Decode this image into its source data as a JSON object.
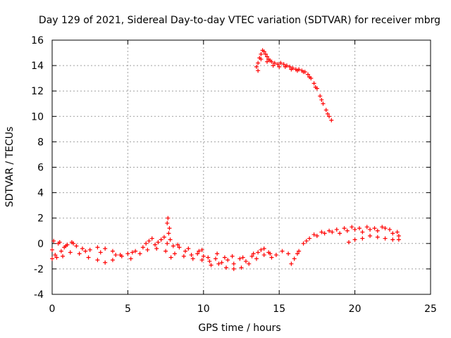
{
  "chart_data": {
    "type": "scatter",
    "title": "Day 129 of 2021, Sidereal Day-to-day VTEC variation (SDTVAR) for receiver mbrg",
    "xlabel": "GPS time / hours",
    "ylabel": "SDTVAR / TECUs",
    "xlim": [
      0,
      25
    ],
    "ylim": [
      -4,
      16
    ],
    "xticks": [
      "0",
      "5",
      "10",
      "15",
      "20",
      "25"
    ],
    "yticks": [
      "-4",
      "-2",
      "0",
      "2",
      "4",
      "6",
      "8",
      "10",
      "12",
      "14",
      "16"
    ],
    "grid": true,
    "marker": "+",
    "marker_color": "#ff0000",
    "series": [
      {
        "name": "SDTVAR",
        "points": [
          [
            0.0,
            -0.5
          ],
          [
            0.2,
            -0.9
          ],
          [
            0.4,
            0.0
          ],
          [
            0.6,
            -0.6
          ],
          [
            0.8,
            -0.3
          ],
          [
            1.0,
            -0.1
          ],
          [
            1.3,
            0.1
          ],
          [
            1.6,
            -0.2
          ],
          [
            2.0,
            -0.4
          ],
          [
            2.5,
            -0.5
          ],
          [
            3.0,
            -0.3
          ],
          [
            3.5,
            -0.4
          ],
          [
            4.0,
            -0.6
          ],
          [
            4.5,
            -0.9
          ],
          [
            5.0,
            -0.8
          ],
          [
            5.5,
            -0.6
          ],
          [
            6.0,
            -0.3
          ],
          [
            6.4,
            0.2
          ],
          [
            6.8,
            -0.1
          ],
          [
            7.2,
            0.3
          ],
          [
            7.6,
            0.0
          ],
          [
            8.0,
            -0.2
          ],
          [
            8.4,
            -0.3
          ],
          [
            8.8,
            -0.6
          ],
          [
            9.2,
            -0.9
          ],
          [
            9.6,
            -0.8
          ],
          [
            10.0,
            -1.0
          ],
          [
            10.4,
            -1.4
          ],
          [
            10.8,
            -1.2
          ],
          [
            11.2,
            -1.5
          ],
          [
            11.6,
            -1.3
          ],
          [
            12.0,
            -1.6
          ],
          [
            12.4,
            -1.2
          ],
          [
            12.8,
            -1.4
          ],
          [
            13.2,
            -1.0
          ],
          [
            13.6,
            -0.7
          ],
          [
            14.0,
            -0.4
          ],
          [
            14.4,
            -0.8
          ],
          [
            14.8,
            -0.9
          ],
          [
            15.2,
            -0.6
          ],
          [
            15.6,
            -0.8
          ],
          [
            0.0,
            -1.2
          ],
          [
            0.3,
            -1.1
          ],
          [
            0.7,
            -1.0
          ],
          [
            1.2,
            -0.7
          ],
          [
            1.8,
            -0.8
          ],
          [
            2.4,
            -1.1
          ],
          [
            3.0,
            -1.3
          ],
          [
            3.5,
            -1.5
          ],
          [
            4.0,
            -1.3
          ],
          [
            4.6,
            -1.0
          ],
          [
            5.2,
            -1.2
          ],
          [
            5.8,
            -0.8
          ],
          [
            6.3,
            -0.5
          ],
          [
            6.9,
            -0.4
          ],
          [
            7.5,
            -0.6
          ],
          [
            8.1,
            -0.8
          ],
          [
            8.7,
            -1.0
          ],
          [
            9.3,
            -1.2
          ],
          [
            9.9,
            -1.3
          ],
          [
            10.5,
            -1.7
          ],
          [
            11.0,
            -1.6
          ],
          [
            11.5,
            -1.9
          ],
          [
            12.0,
            -2.0
          ],
          [
            12.5,
            -1.9
          ],
          [
            13.0,
            -1.6
          ],
          [
            13.5,
            -1.2
          ],
          [
            14.0,
            -0.9
          ],
          [
            14.5,
            -1.1
          ],
          [
            0.1,
            0.2
          ],
          [
            0.5,
            0.1
          ],
          [
            0.9,
            -0.2
          ],
          [
            1.4,
            0.0
          ],
          [
            2.2,
            -0.6
          ],
          [
            3.2,
            -0.7
          ],
          [
            4.2,
            -0.9
          ],
          [
            5.3,
            -0.7
          ],
          [
            6.2,
            0.0
          ],
          [
            6.6,
            0.4
          ],
          [
            7.0,
            0.1
          ],
          [
            7.4,
            0.5
          ],
          [
            7.8,
            0.3
          ],
          [
            8.3,
            -0.1
          ],
          [
            9.0,
            -0.4
          ],
          [
            9.7,
            -0.6
          ],
          [
            10.3,
            -1.1
          ],
          [
            10.9,
            -0.8
          ],
          [
            11.4,
            -1.1
          ],
          [
            11.9,
            -1.0
          ],
          [
            12.6,
            -1.1
          ],
          [
            13.3,
            -0.8
          ],
          [
            13.8,
            -0.5
          ],
          [
            14.3,
            -0.7
          ],
          [
            7.6,
            1.6
          ],
          [
            7.65,
            2.0
          ],
          [
            7.7,
            0.8
          ],
          [
            7.75,
            1.2
          ],
          [
            7.85,
            -1.1
          ],
          [
            9.9,
            -0.5
          ],
          [
            15.8,
            -1.6
          ],
          [
            16.0,
            -1.2
          ],
          [
            16.3,
            -0.6
          ],
          [
            16.6,
            0.0
          ],
          [
            17.0,
            0.4
          ],
          [
            17.5,
            0.6
          ],
          [
            18.0,
            0.8
          ],
          [
            18.5,
            0.9
          ],
          [
            19.0,
            0.8
          ],
          [
            19.5,
            1.0
          ],
          [
            20.0,
            1.1
          ],
          [
            20.5,
            0.9
          ],
          [
            21.0,
            1.1
          ],
          [
            21.5,
            1.0
          ],
          [
            22.0,
            1.2
          ],
          [
            22.5,
            0.8
          ],
          [
            22.9,
            0.6
          ],
          [
            16.2,
            -0.8
          ],
          [
            16.8,
            0.2
          ],
          [
            17.3,
            0.7
          ],
          [
            17.8,
            0.9
          ],
          [
            18.3,
            1.0
          ],
          [
            18.8,
            1.1
          ],
          [
            19.3,
            1.2
          ],
          [
            19.8,
            1.3
          ],
          [
            20.3,
            1.2
          ],
          [
            20.8,
            1.3
          ],
          [
            21.3,
            1.2
          ],
          [
            21.8,
            1.3
          ],
          [
            22.3,
            1.1
          ],
          [
            22.8,
            0.9
          ],
          [
            19.6,
            0.1
          ],
          [
            20.0,
            0.3
          ],
          [
            20.5,
            0.4
          ],
          [
            21.0,
            0.6
          ],
          [
            21.5,
            0.5
          ],
          [
            22.0,
            0.4
          ],
          [
            22.5,
            0.3
          ],
          [
            22.9,
            0.3
          ],
          [
            13.5,
            13.9
          ],
          [
            13.6,
            14.2
          ],
          [
            13.7,
            14.6
          ],
          [
            13.8,
            14.9
          ],
          [
            13.9,
            15.2
          ],
          [
            14.0,
            15.1
          ],
          [
            14.1,
            14.9
          ],
          [
            14.2,
            14.7
          ],
          [
            14.3,
            14.5
          ],
          [
            14.4,
            14.4
          ],
          [
            14.5,
            14.3
          ],
          [
            14.7,
            14.2
          ],
          [
            14.9,
            14.1
          ],
          [
            15.1,
            14.2
          ],
          [
            15.3,
            14.1
          ],
          [
            15.5,
            14.0
          ],
          [
            15.7,
            13.9
          ],
          [
            15.9,
            13.8
          ],
          [
            16.1,
            13.7
          ],
          [
            16.3,
            13.7
          ],
          [
            16.5,
            13.6
          ],
          [
            16.7,
            13.5
          ],
          [
            16.9,
            13.3
          ],
          [
            17.1,
            13.0
          ],
          [
            17.3,
            12.6
          ],
          [
            17.5,
            12.2
          ],
          [
            17.7,
            11.6
          ],
          [
            17.9,
            11.0
          ],
          [
            18.1,
            10.5
          ],
          [
            18.3,
            10.0
          ],
          [
            18.45,
            9.7
          ],
          [
            13.6,
            13.6
          ],
          [
            13.8,
            14.5
          ],
          [
            14.2,
            14.3
          ],
          [
            14.6,
            14.0
          ],
          [
            15.0,
            13.9
          ],
          [
            15.4,
            13.9
          ],
          [
            15.8,
            13.7
          ],
          [
            16.2,
            13.6
          ],
          [
            16.6,
            13.5
          ],
          [
            17.0,
            13.1
          ],
          [
            17.4,
            12.3
          ],
          [
            17.8,
            11.3
          ],
          [
            18.2,
            10.2
          ]
        ]
      }
    ]
  }
}
